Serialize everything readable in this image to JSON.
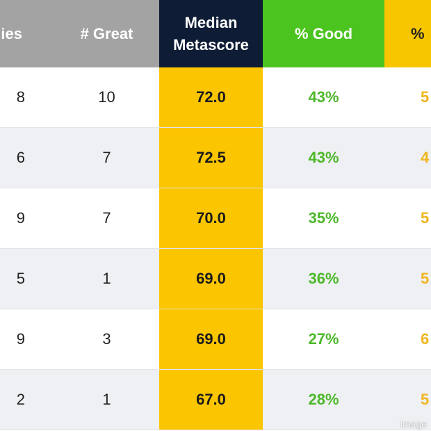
{
  "table": {
    "headers": [
      "ies",
      "# Great",
      "Median Metascore",
      "% Good",
      "%"
    ],
    "rows": [
      [
        "8",
        "10",
        "72.0",
        "43%",
        "5"
      ],
      [
        "6",
        "7",
        "72.5",
        "43%",
        "4"
      ],
      [
        "9",
        "7",
        "70.0",
        "35%",
        "5"
      ],
      [
        "5",
        "1",
        "69.0",
        "36%",
        "5"
      ],
      [
        "9",
        "3",
        "69.0",
        "27%",
        "6"
      ],
      [
        "2",
        "1",
        "67.0",
        "28%",
        "5"
      ]
    ]
  },
  "watermark": "image"
}
